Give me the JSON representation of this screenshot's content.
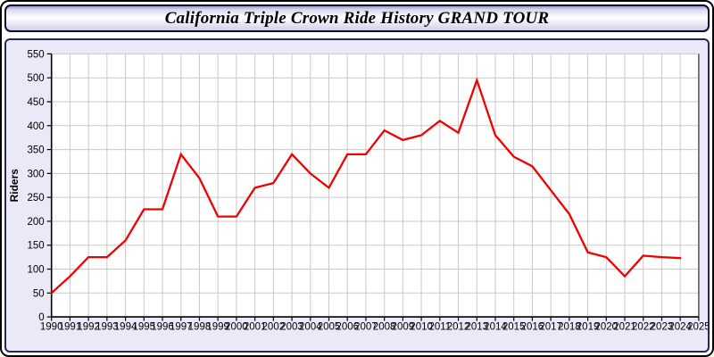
{
  "title": "California Triple Crown Ride History GRAND TOUR",
  "colors": {
    "line": "#f20000",
    "grid": "#c9c9c9",
    "axis": "#000000",
    "plot_right_border": "#555555",
    "panel_background": "#e9e9f7",
    "plot_background": "#ffffff",
    "text": "#000000"
  },
  "chart_data": {
    "type": "line",
    "title": "California Triple Crown Ride History GRAND TOUR",
    "xlabel": "",
    "ylabel": "Riders",
    "ylim": [
      0,
      550
    ],
    "y_tick_step": 50,
    "y_tick_labels": [
      "0",
      "50",
      "100",
      "150",
      "200",
      "250",
      "300",
      "350",
      "400",
      "450",
      "500",
      "550"
    ],
    "grid": true,
    "legend_position": "none",
    "x_axis_tick_years": [
      1990,
      1991,
      1992,
      1993,
      1994,
      1995,
      1996,
      1997,
      1998,
      1999,
      2000,
      2001,
      2002,
      2003,
      2004,
      2005,
      2006,
      2007,
      2008,
      2009,
      2010,
      2011,
      2012,
      2013,
      2014,
      2015,
      2016,
      2017,
      2018,
      2019,
      2020,
      2021,
      2022,
      2023,
      2024,
      2025
    ],
    "series": [
      {
        "name": "Riders",
        "years": [
          1990,
          1991,
          1992,
          1993,
          1994,
          1995,
          1996,
          1997,
          1998,
          1999,
          2000,
          2001,
          2002,
          2003,
          2004,
          2005,
          2006,
          2007,
          2008,
          2009,
          2010,
          2011,
          2012,
          2013,
          2014,
          2015,
          2016,
          2017,
          2018,
          2019,
          2020,
          2021,
          2022,
          2023,
          2024
        ],
        "values": [
          50,
          85,
          125,
          125,
          160,
          225,
          225,
          340,
          290,
          210,
          210,
          270,
          280,
          340,
          300,
          270,
          340,
          340,
          390,
          370,
          380,
          410,
          385,
          495,
          380,
          335,
          315,
          265,
          215,
          135,
          125,
          85,
          128,
          125,
          123
        ]
      }
    ]
  }
}
